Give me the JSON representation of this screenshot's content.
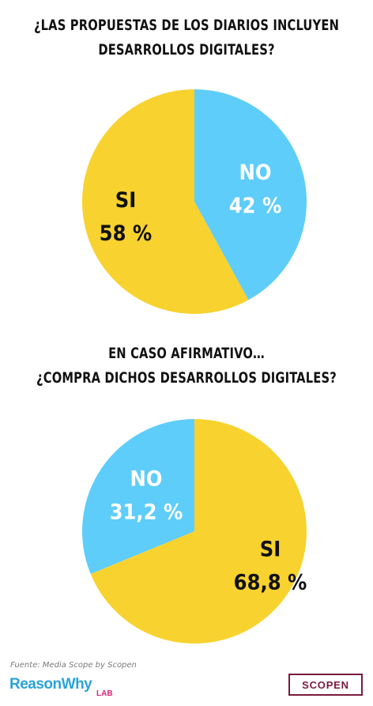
{
  "chart_data": [
    {
      "type": "pie",
      "title_lines": [
        "¿LAS PROPUESTAS DE LOS DIARIOS INCLUYEN",
        "DESARROLLOS DIGITALES?"
      ],
      "slices": [
        {
          "name": "NO",
          "value": 42,
          "display": "42 %",
          "color": "#5ecdfa"
        },
        {
          "name": "SI",
          "value": 58,
          "display": "58 %",
          "color": "#f8d22e"
        }
      ]
    },
    {
      "type": "pie",
      "title_lines": [
        "EN CASO AFIRMATIVO…",
        "¿COMPRA DICHOS DESARROLLOS DIGITALES?"
      ],
      "slices": [
        {
          "name": "SI",
          "value": 68.8,
          "display": "68,8 %",
          "color": "#f8d22e"
        },
        {
          "name": "NO",
          "value": 31.2,
          "display": "31,2 %",
          "color": "#5ecdfa"
        }
      ]
    }
  ],
  "footer": {
    "source": "Fuente: Media Scope by Scopen",
    "brand_left": "ReasonWhy",
    "brand_left_sub": "LAB",
    "brand_right": "SCOPEN"
  }
}
